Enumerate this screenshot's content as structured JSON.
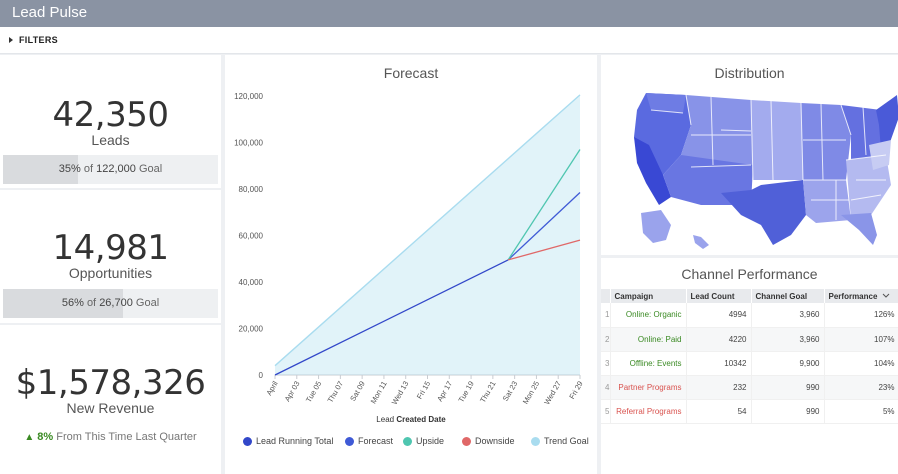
{
  "app": {
    "title": "Lead Pulse"
  },
  "filters": {
    "label": "FILTERS"
  },
  "kpis": {
    "leads": {
      "value": "42,350",
      "label": "Leads",
      "goal_pct": "35%",
      "goal_of": "of",
      "goal_value": "122,000",
      "goal_word": "Goal",
      "fill": 0.35
    },
    "opportunities": {
      "value": "14,981",
      "label": "Opportunities",
      "goal_pct": "56%",
      "goal_of": "of",
      "goal_value": "26,700",
      "goal_word": "Goal",
      "fill": 0.56
    },
    "revenue": {
      "value": "$1,578,326",
      "label": "New Revenue",
      "trend_pct": "8%",
      "trend_text": "From This Time Last Quarter"
    }
  },
  "forecast": {
    "title": "Forecast",
    "xlabel_prefix": "Lead",
    "xlabel_bold": "Created Date",
    "legend": [
      {
        "name": "Lead Running Total",
        "color": "#3247c9"
      },
      {
        "name": "Forecast",
        "color": "#3f5ad6"
      },
      {
        "name": "Upside",
        "color": "#4fc6b0"
      },
      {
        "name": "Downside",
        "color": "#e06868"
      },
      {
        "name": "Trend Goal",
        "color": "#a9dcef"
      }
    ]
  },
  "chart_data": {
    "type": "line",
    "x": [
      "April",
      "Apr 03",
      "Tue 05",
      "Thu 07",
      "Sat 09",
      "Mon 11",
      "Wed 13",
      "Fri 15",
      "Apr 17",
      "Tue 19",
      "Thu 21",
      "Sat 23",
      "Mon 25",
      "Wed 27",
      "Fri 29"
    ],
    "ylim": [
      0,
      120000
    ],
    "yticks": [
      "0",
      "20,000",
      "40,000",
      "60,000",
      "80,000",
      "100,000",
      "120,000"
    ],
    "series": [
      {
        "name": "Lead Running Total",
        "color": "#3247c9",
        "points": [
          [
            0,
            0
          ],
          [
            10.7,
            49500
          ]
        ]
      },
      {
        "name": "Forecast",
        "color": "#3f5ad6",
        "points": [
          [
            10.7,
            49500
          ],
          [
            14.0,
            78500
          ]
        ]
      },
      {
        "name": "Upside",
        "color": "#4fc6b0",
        "points": [
          [
            10.7,
            49500
          ],
          [
            14.0,
            97000
          ]
        ]
      },
      {
        "name": "Downside",
        "color": "#e06868",
        "points": [
          [
            10.7,
            49500
          ],
          [
            14.0,
            58000
          ]
        ]
      },
      {
        "name": "Trend Goal",
        "color": "#a9dcef",
        "area": true,
        "points": [
          [
            0,
            4000
          ],
          [
            14.0,
            120500
          ]
        ]
      }
    ]
  },
  "distribution": {
    "title": "Distribution"
  },
  "channel": {
    "title": "Channel Performance",
    "columns": [
      "Campaign",
      "Lead Count",
      "Channel Goal",
      "Performance"
    ],
    "rows": [
      {
        "idx": "1",
        "campaign": "Online: Organic",
        "count": "4994",
        "goal": "3,960",
        "perf": "126%",
        "status": "green"
      },
      {
        "idx": "2",
        "campaign": "Online: Paid",
        "count": "4220",
        "goal": "3,960",
        "perf": "107%",
        "status": "green"
      },
      {
        "idx": "3",
        "campaign": "Offline: Events",
        "count": "10342",
        "goal": "9,900",
        "perf": "104%",
        "status": "green"
      },
      {
        "idx": "4",
        "campaign": "Partner Programs",
        "count": "232",
        "goal": "990",
        "perf": "23%",
        "status": "red"
      },
      {
        "idx": "5",
        "campaign": "Referral Programs",
        "count": "54",
        "goal": "990",
        "perf": "5%",
        "status": "red"
      }
    ]
  }
}
